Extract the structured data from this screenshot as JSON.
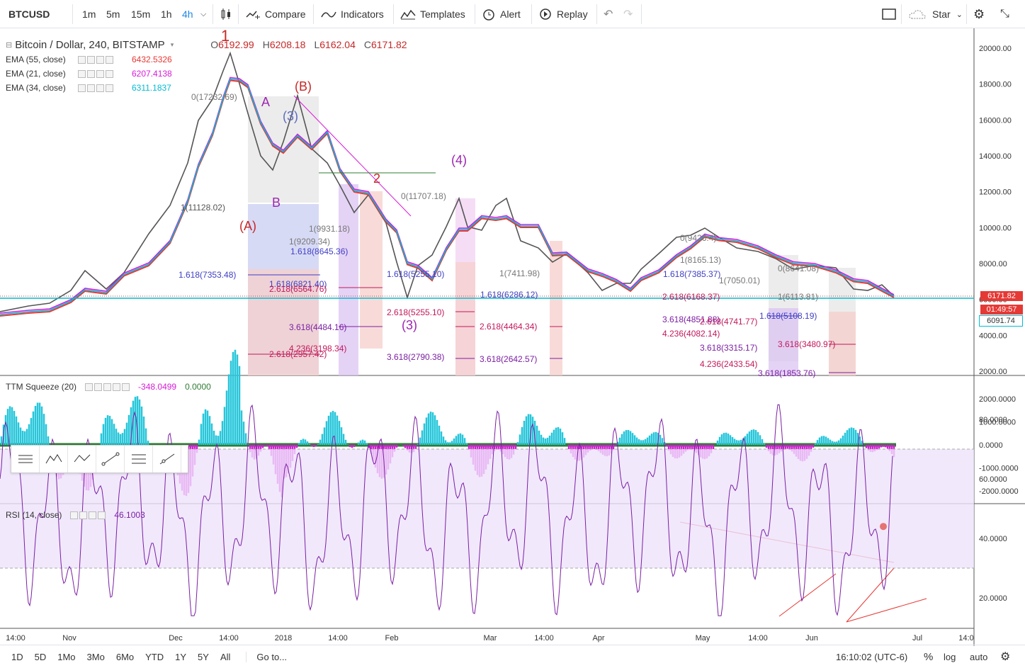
{
  "toolbar": {
    "symbol": "BTCUSD",
    "timeframes": [
      "1m",
      "5m",
      "15m",
      "1h",
      "4h"
    ],
    "active_timeframe": "4h",
    "compare": "Compare",
    "indicators": "Indicators",
    "templates": "Templates",
    "alert": "Alert",
    "replay": "Replay",
    "star": "Star"
  },
  "main": {
    "title": "Bitcoin / Dollar, 240, BITSTAMP",
    "open": "6192.99",
    "high": "6208.18",
    "low": "6162.04",
    "close": "6171.82",
    "o_lbl": "O",
    "h_lbl": "H",
    "l_lbl": "L",
    "c_lbl": "C",
    "ema55": {
      "label": "EMA (55, close)",
      "value": "6432.5326",
      "color": "#e53935"
    },
    "ema21": {
      "label": "EMA (21, close)",
      "value": "6207.4138",
      "color": "#d81bd8"
    },
    "ema34": {
      "label": "EMA (34, close)",
      "value": "6311.1837",
      "color": "#00bcd4"
    }
  },
  "price_axis": [
    "20000.00",
    "18000.00",
    "16000.00",
    "14000.00",
    "12000.00",
    "10000.00",
    "8000.00",
    "6000.00",
    "4000.00",
    "2000.00"
  ],
  "price_tags": {
    "last": "6171.82",
    "countdown": "01:49:57",
    "ema": "6091.74"
  },
  "ttm": {
    "label": "TTM Squeeze (20)",
    "value": "-348.0499",
    "value2": "0.0000",
    "axis": [
      "2000.0000",
      "1000.0000",
      "0.0000",
      "-1000.0000",
      "-2000.0000"
    ]
  },
  "rsi": {
    "label": "RSI (14, close)",
    "value": "46.1003",
    "axis": [
      "80.0000",
      "60.0000",
      "40.0000",
      "20.0000"
    ]
  },
  "time_axis": [
    "14:00",
    "Nov",
    "Dec",
    "14:00",
    "2018",
    "14:00",
    "Feb",
    "Mar",
    "14:00",
    "Apr",
    "May",
    "14:00",
    "Jun",
    "Jul",
    "14:0"
  ],
  "wave_labels": {
    "big": [
      "1",
      "(A)",
      "(B)",
      "A",
      "B",
      "(3)",
      "(4)",
      "2",
      "(3)"
    ],
    "fibs": [
      "0(17232.69)",
      "1(11128.02)",
      "1.618(7353.48)",
      "1(9931.18)",
      "1(9209.34)",
      "1.618(8645.36)",
      "1.618(6821.40)",
      "2.618(6564.76)",
      "3.618(4484.16)",
      "4.236(3198.34)",
      "2.618(2957.42)",
      "0(11707.18)",
      "1.618(5255.10)",
      "2.618(5255.10)",
      "3.618(2790.38)",
      "1(7411.98)",
      "1.618(6286.12)",
      "2.618(4464.34)",
      "3.618(2642.57)",
      "0(9426.4)",
      "1(8165.13)",
      "1.618(7385.37)",
      "1(7050.01)",
      "2.618(6168.37)",
      "3.618(4851.88)",
      "2.618(4741.77)",
      "4.236(4082.14)",
      "3.618(3315.17)",
      "4.236(2433.54)",
      "1.618(5108.19)",
      "3.618(3480.97)",
      "3.618(1853.76)",
      "1(6113.81)",
      "0(8641.08)"
    ]
  },
  "bottom": {
    "ranges": [
      "1D",
      "5D",
      "1Mo",
      "3Mo",
      "6Mo",
      "YTD",
      "1Y",
      "5Y",
      "All"
    ],
    "goto": "Go to...",
    "clock": "16:10:02 (UTC-6)",
    "pct": "%",
    "log": "log",
    "auto": "auto"
  },
  "colors": {
    "up": "#26a69a",
    "ema_red": "#e53935",
    "ema_pink": "#d81bd8",
    "ema_cyan": "#00bcd4",
    "rsi": "#7b1fa2"
  }
}
